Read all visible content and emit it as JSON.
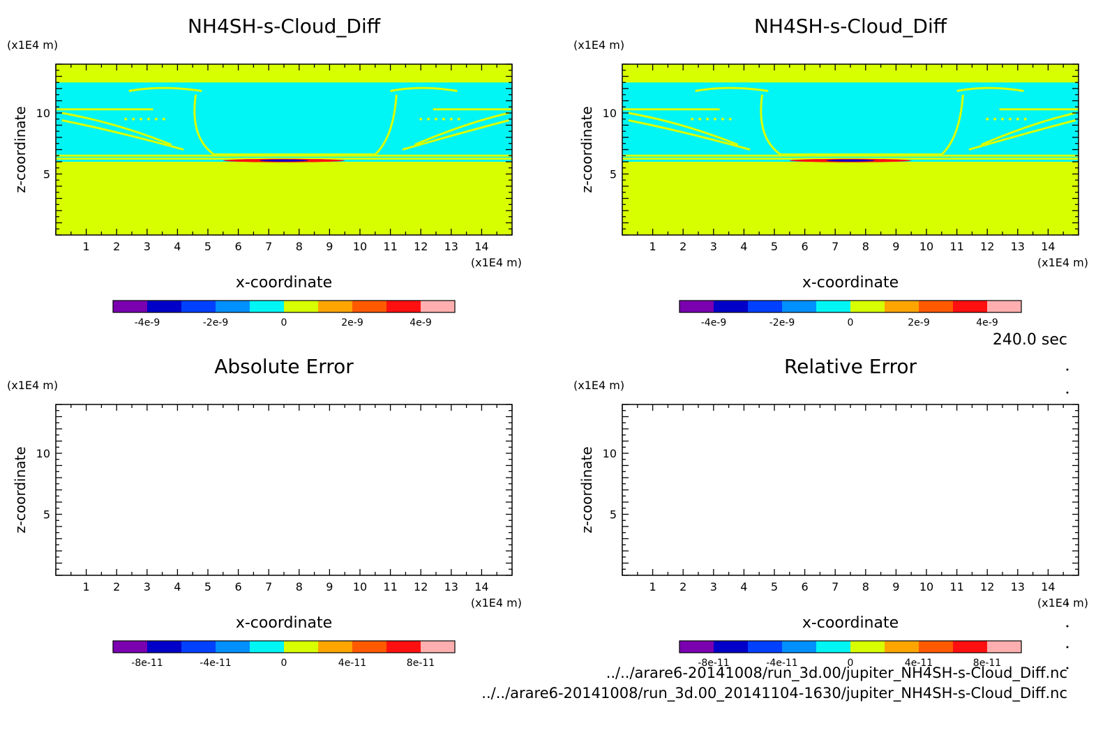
{
  "timestamp": "240.0 sec",
  "files": [
    "../../arare6-20141008/run_3d.00/jupiter_NH4SH-s-Cloud_Diff.nc",
    "../../arare6-20141008/run_3d.00_20141104-1630/jupiter_NH4SH-s-Cloud_Diff.nc"
  ],
  "colors": {
    "fill_zero_plus": "#d8ff00",
    "fill_zero_minus": "#00f5f5",
    "frame": "#000000"
  },
  "chart_data": [
    {
      "type": "heatmap",
      "title": "NH4SH-s-Cloud_Diff",
      "xlabel": "x-coordinate",
      "ylabel": "z-coordinate",
      "xunit": "(x1E4 m)",
      "yunit": "(x1E4 m)",
      "xlim": [
        0,
        15
      ],
      "ylim": [
        0,
        14
      ],
      "xticks": [
        "1",
        "2",
        "3",
        "4",
        "5",
        "6",
        "7",
        "8",
        "9",
        "10",
        "11",
        "12",
        "13",
        "14"
      ],
      "yticks": [
        "5",
        "10"
      ],
      "field": {
        "background_value": "0 to 1e-9",
        "cloud_layer": {
          "z_range": [
            6.0,
            12.5
          ],
          "value": "-1e-9 to 0"
        },
        "minimum_region": {
          "x_range": [
            5.5,
            9.5
          ],
          "z": 6.1,
          "value": "-5e-9"
        }
      },
      "colorbar": {
        "colors": [
          "#7a00b0",
          "#0000c8",
          "#0040ff",
          "#0090ff",
          "#00f5f5",
          "#d8ff00",
          "#ffa500",
          "#ff5a00",
          "#ff1010",
          "#ffafaf"
        ],
        "ticks": [
          "-4e-9",
          "-2e-9",
          "0",
          "2e-9",
          "4e-9"
        ],
        "tick_values": [
          -4,
          -2,
          0,
          2,
          4
        ],
        "range": [
          -5,
          5
        ]
      }
    },
    {
      "type": "heatmap",
      "title": "NH4SH-s-Cloud_Diff",
      "xlabel": "x-coordinate",
      "ylabel": "z-coordinate",
      "xunit": "(x1E4 m)",
      "yunit": "(x1E4 m)",
      "xlim": [
        0,
        15
      ],
      "ylim": [
        0,
        14
      ],
      "xticks": [
        "1",
        "2",
        "3",
        "4",
        "5",
        "6",
        "7",
        "8",
        "9",
        "10",
        "11",
        "12",
        "13",
        "14"
      ],
      "yticks": [
        "5",
        "10"
      ],
      "field": {
        "background_value": "0 to 1e-9",
        "cloud_layer": {
          "z_range": [
            6.0,
            12.5
          ],
          "value": "-1e-9 to 0"
        },
        "minimum_region": {
          "x_range": [
            5.5,
            9.5
          ],
          "z": 6.1,
          "value": "-5e-9"
        }
      },
      "colorbar": {
        "colors": [
          "#7a00b0",
          "#0000c8",
          "#0040ff",
          "#0090ff",
          "#00f5f5",
          "#d8ff00",
          "#ffa500",
          "#ff5a00",
          "#ff1010",
          "#ffafaf"
        ],
        "ticks": [
          "-4e-9",
          "-2e-9",
          "0",
          "2e-9",
          "4e-9"
        ],
        "tick_values": [
          -4,
          -2,
          0,
          2,
          4
        ],
        "range": [
          -5,
          5
        ]
      }
    },
    {
      "type": "heatmap",
      "title": "Absolute Error",
      "xlabel": "x-coordinate",
      "ylabel": "z-coordinate",
      "xunit": "(x1E4 m)",
      "yunit": "(x1E4 m)",
      "xlim": [
        0,
        15
      ],
      "ylim": [
        0,
        14
      ],
      "xticks": [
        "1",
        "2",
        "3",
        "4",
        "5",
        "6",
        "7",
        "8",
        "9",
        "10",
        "11",
        "12",
        "13",
        "14"
      ],
      "yticks": [
        "5",
        "10"
      ],
      "field": null,
      "colorbar": {
        "colors": [
          "#7a00b0",
          "#0000c8",
          "#0040ff",
          "#0090ff",
          "#00f5f5",
          "#d8ff00",
          "#ffa500",
          "#ff5a00",
          "#ff1010",
          "#ffafaf"
        ],
        "ticks": [
          "-8e-11",
          "-4e-11",
          "0",
          "4e-11",
          "8e-11"
        ],
        "tick_values": [
          -8,
          -4,
          0,
          4,
          8
        ],
        "range": [
          -10,
          10
        ]
      }
    },
    {
      "type": "heatmap",
      "title": "Relative Error",
      "xlabel": "x-coordinate",
      "ylabel": "z-coordinate",
      "xunit": "(x1E4 m)",
      "yunit": "(x1E4 m)",
      "xlim": [
        0,
        15
      ],
      "ylim": [
        0,
        14
      ],
      "xticks": [
        "1",
        "2",
        "3",
        "4",
        "5",
        "6",
        "7",
        "8",
        "9",
        "10",
        "11",
        "12",
        "13",
        "14"
      ],
      "yticks": [
        "5",
        "10"
      ],
      "field": null,
      "colorbar": {
        "colors": [
          "#7a00b0",
          "#0000c8",
          "#0040ff",
          "#0090ff",
          "#00f5f5",
          "#d8ff00",
          "#ffa500",
          "#ff5a00",
          "#ff1010",
          "#ffafaf"
        ],
        "ticks": [
          "-8e-11",
          "-4e-11",
          "0",
          "4e-11",
          "8e-11"
        ],
        "tick_values": [
          -8,
          -4,
          0,
          4,
          8
        ],
        "range": [
          -10,
          10
        ]
      }
    }
  ]
}
